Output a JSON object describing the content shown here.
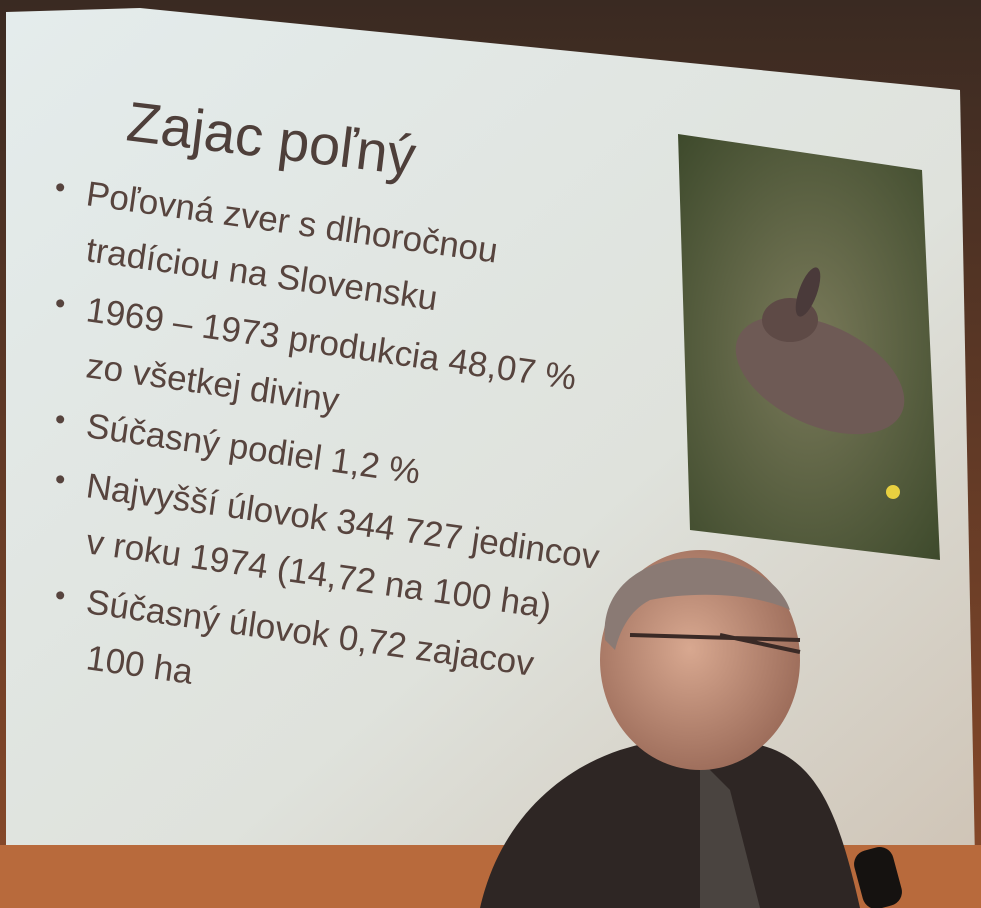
{
  "slide": {
    "title": "Zajac poľný",
    "bullets": [
      [
        "Poľovná zver s dlhoročnou",
        "tradíciou na Slovensku"
      ],
      [
        "1969 – 1973 produkcia 48,07 %",
        "zo všetkej diviny"
      ],
      [
        "Súčasný podiel 1,2 %"
      ],
      [
        "Najvyšší úlovok 344 727 jedincov",
        "v roku 1974 (14,72 na 100 ha)"
      ],
      [
        "Súčasný úlovok 0,72 zajacov",
        "100 ha"
      ]
    ]
  }
}
